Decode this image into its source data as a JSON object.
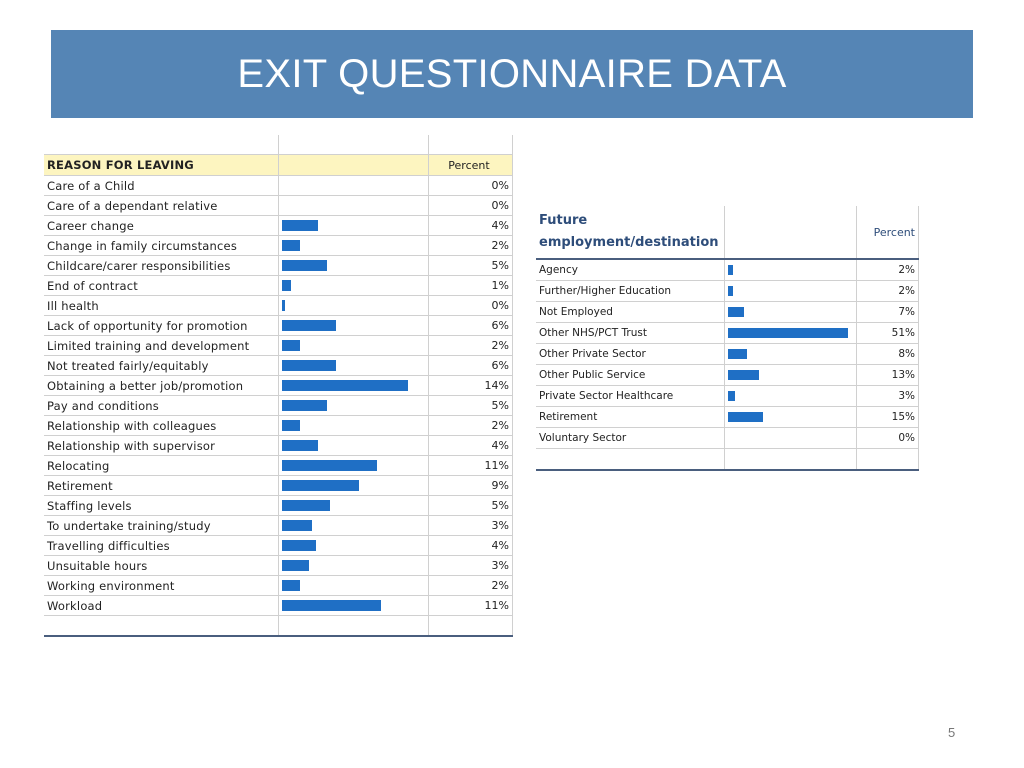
{
  "title": "EXIT QUESTIONNAIRE DATA",
  "slide_number": "5",
  "colors": {
    "title_bg": "#5585b5",
    "bar": "#1f6fc5",
    "header_bg": "#fdf5c0",
    "header_text": "#2e4d7a"
  },
  "reasons": {
    "header_label": "REASON FOR LEAVING",
    "header_percent": "Percent",
    "max_percent": 14,
    "rows": [
      {
        "label": "Care of a Child",
        "percent": "0%",
        "value": 0
      },
      {
        "label": "Care of a dependant relative",
        "percent": "0%",
        "value": 0
      },
      {
        "label": "Career change",
        "percent": "4%",
        "value": 4
      },
      {
        "label": "Change in family circumstances",
        "percent": "2%",
        "value": 2
      },
      {
        "label": "Childcare/carer responsibilities",
        "percent": "5%",
        "value": 5
      },
      {
        "label": "End of contract",
        "percent": "1%",
        "value": 1
      },
      {
        "label": "Ill health",
        "percent": "0%",
        "value": 0.3
      },
      {
        "label": "Lack of opportunity for promotion",
        "percent": "6%",
        "value": 6
      },
      {
        "label": "Limited training and development",
        "percent": "2%",
        "value": 2
      },
      {
        "label": "Not treated fairly/equitably",
        "percent": "6%",
        "value": 6
      },
      {
        "label": "Obtaining a better job/promotion",
        "percent": "14%",
        "value": 14
      },
      {
        "label": "Pay and conditions",
        "percent": "5%",
        "value": 5
      },
      {
        "label": "Relationship with colleagues",
        "percent": "2%",
        "value": 2
      },
      {
        "label": "Relationship with supervisor",
        "percent": "4%",
        "value": 4
      },
      {
        "label": "Relocating",
        "percent": "11%",
        "value": 10.5
      },
      {
        "label": "Retirement",
        "percent": "9%",
        "value": 8.6
      },
      {
        "label": "Staffing levels",
        "percent": "5%",
        "value": 5.3
      },
      {
        "label": "To undertake training/study",
        "percent": "3%",
        "value": 3.3
      },
      {
        "label": "Travelling difficulties",
        "percent": "4%",
        "value": 3.8
      },
      {
        "label": "Unsuitable hours",
        "percent": "3%",
        "value": 3
      },
      {
        "label": "Working environment",
        "percent": "2%",
        "value": 2
      },
      {
        "label": "Workload",
        "percent": "11%",
        "value": 11
      }
    ]
  },
  "destinations": {
    "header_label": "Future employment/destination",
    "header_percent": "Percent",
    "max_percent": 51,
    "rows": [
      {
        "label": "Agency",
        "percent": "2%",
        "value": 2
      },
      {
        "label": "Further/Higher Education",
        "percent": "2%",
        "value": 2
      },
      {
        "label": "Not Employed",
        "percent": "7%",
        "value": 7
      },
      {
        "label": "Other NHS/PCT Trust",
        "percent": "51%",
        "value": 51
      },
      {
        "label": "Other Private Sector",
        "percent": "8%",
        "value": 8
      },
      {
        "label": "Other Public Service",
        "percent": "13%",
        "value": 13
      },
      {
        "label": "Private Sector Healthcare",
        "percent": "3%",
        "value": 3
      },
      {
        "label": "Retirement",
        "percent": "15%",
        "value": 15
      },
      {
        "label": "Voluntary Sector",
        "percent": "0%",
        "value": 0
      }
    ]
  }
}
